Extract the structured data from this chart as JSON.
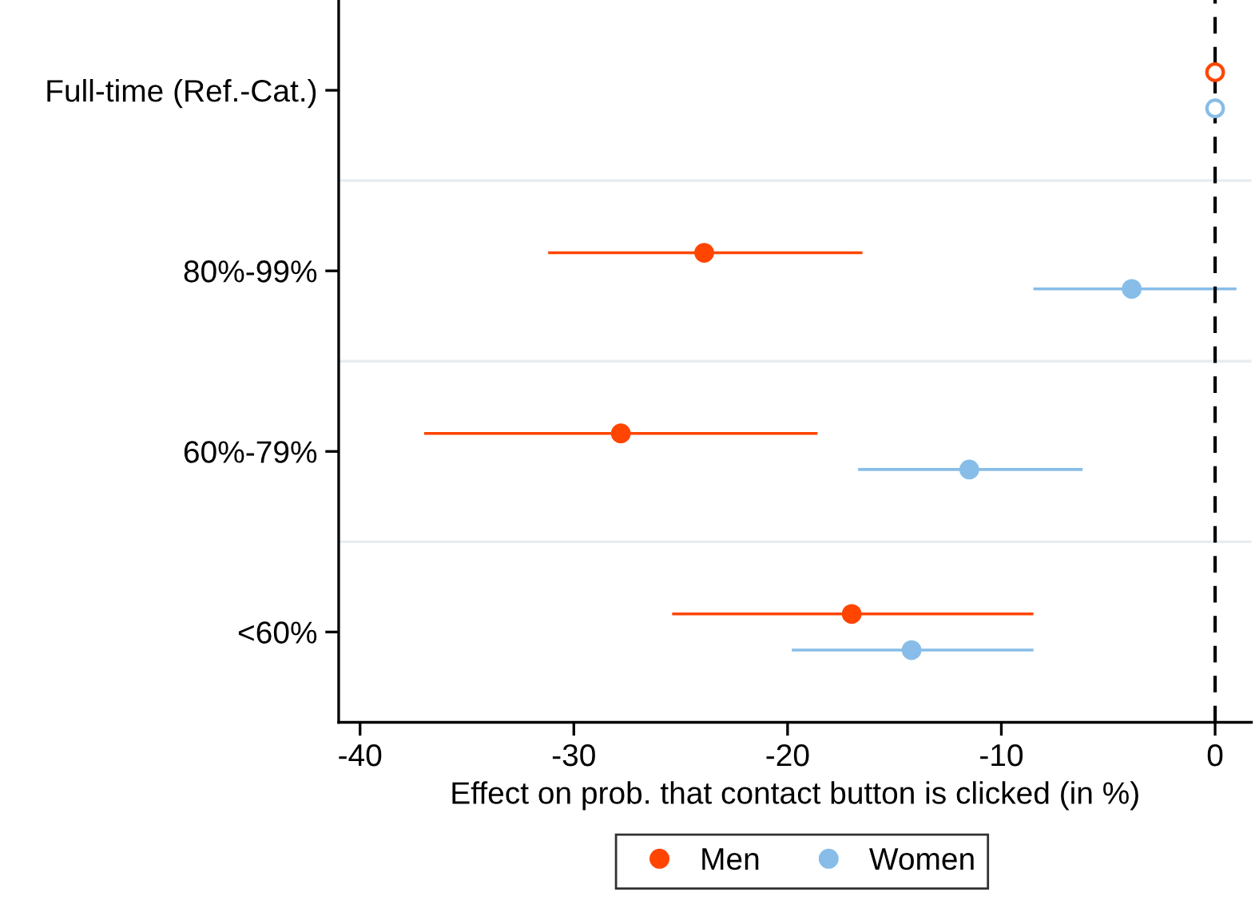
{
  "chart_data": {
    "type": "scatter",
    "orientation": "horizontal",
    "xlabel": "Effect on prob. that contact button is clicked (in %)",
    "categories": [
      "Full-time (Ref.-Cat.)",
      "80%-99%",
      "60%-79%",
      "<60%"
    ],
    "series": [
      {
        "name": "Men",
        "color": "#ff4500",
        "values": [
          0,
          -23.9,
          -27.8,
          -17.0
        ],
        "errors": [
          null,
          [
            -31.2,
            -16.5
          ],
          [
            -37.0,
            -18.6
          ],
          [
            -25.4,
            -8.5
          ]
        ]
      },
      {
        "name": "Women",
        "color": "#87bde8",
        "values": [
          0,
          -3.9,
          -11.5,
          -14.2
        ],
        "errors": [
          null,
          [
            -8.5,
            1.0
          ],
          [
            -16.7,
            -6.2
          ],
          [
            -19.8,
            -8.5
          ]
        ]
      }
    ],
    "xlim": [
      -41,
      1.7
    ],
    "xticks": [
      -40,
      -30,
      -20,
      -10,
      0
    ],
    "ref_lines": [
      {
        "axis": "x",
        "value": 0,
        "color": "#000000",
        "line_style": "dashed"
      }
    ],
    "grid": "y",
    "legend": "bottom",
    "marker": "circle"
  }
}
